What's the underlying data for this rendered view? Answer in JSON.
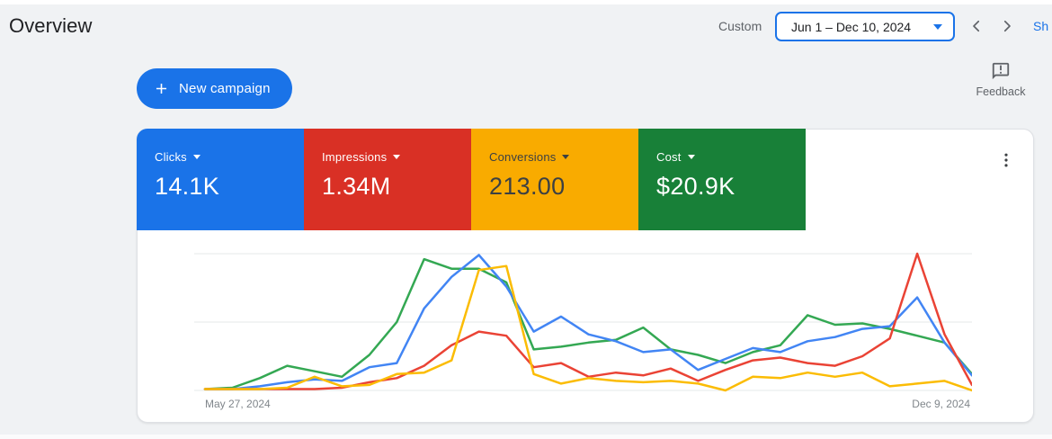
{
  "page": {
    "title": "Overview"
  },
  "theme": {
    "accent": "#1a73e8",
    "muted_text": "#5f6368",
    "grid_color": "#e6e8ea"
  },
  "toolbar": {
    "custom_label": "Custom",
    "date_range": "Jun 1 – Dec 10, 2024",
    "show_link": "Sh"
  },
  "actions": {
    "new_campaign_label": "New campaign",
    "feedback_label": "Feedback"
  },
  "scorecards": [
    {
      "label": "Clicks",
      "value": "14.1K",
      "color": "#1a73e8",
      "text_color": "#ffffff"
    },
    {
      "label": "Impressions",
      "value": "1.34M",
      "color": "#d93025",
      "text_color": "#ffffff"
    },
    {
      "label": "Conversions",
      "value": "213.00",
      "color": "#f9ab00",
      "text_color": "#3c4043"
    },
    {
      "label": "Cost",
      "value": "$20.9K",
      "color": "#188038",
      "text_color": "#ffffff"
    }
  ],
  "chart_data": {
    "type": "line",
    "x_unit": "week",
    "x_start_label": "May 27, 2024",
    "x_end_label": "Dec 9, 2024",
    "ylim": [
      0,
      100
    ],
    "grid": true,
    "gridline_values": [
      0,
      50,
      100
    ],
    "legend_position": "none",
    "series": [
      {
        "name": "Clicks",
        "color": "#4285f4",
        "values": [
          1,
          1,
          3,
          6,
          8,
          7,
          17,
          20,
          60,
          83,
          99,
          76,
          43,
          54,
          41,
          36,
          28,
          30,
          15,
          23,
          31,
          28,
          36,
          39,
          45,
          47,
          68,
          35,
          11
        ]
      },
      {
        "name": "Impressions",
        "color": "#ea4335",
        "values": [
          1,
          1,
          1,
          1,
          1,
          2,
          6,
          9,
          18,
          33,
          43,
          40,
          17,
          20,
          10,
          13,
          11,
          16,
          7,
          15,
          22,
          24,
          20,
          18,
          25,
          38,
          100,
          41,
          4
        ]
      },
      {
        "name": "Conversions",
        "color": "#fbbc04",
        "values": [
          1,
          1,
          1,
          2,
          10,
          3,
          4,
          12,
          13,
          22,
          88,
          91,
          12,
          5,
          9,
          7,
          6,
          7,
          5,
          0,
          10,
          9,
          13,
          10,
          13,
          3,
          5,
          7,
          0
        ]
      },
      {
        "name": "Cost",
        "color": "#34a853",
        "values": [
          1,
          2,
          9,
          18,
          14,
          10,
          26,
          50,
          96,
          89,
          89,
          79,
          30,
          32,
          35,
          37,
          46,
          30,
          26,
          20,
          28,
          33,
          55,
          48,
          49,
          45,
          40,
          35,
          12
        ]
      }
    ]
  }
}
